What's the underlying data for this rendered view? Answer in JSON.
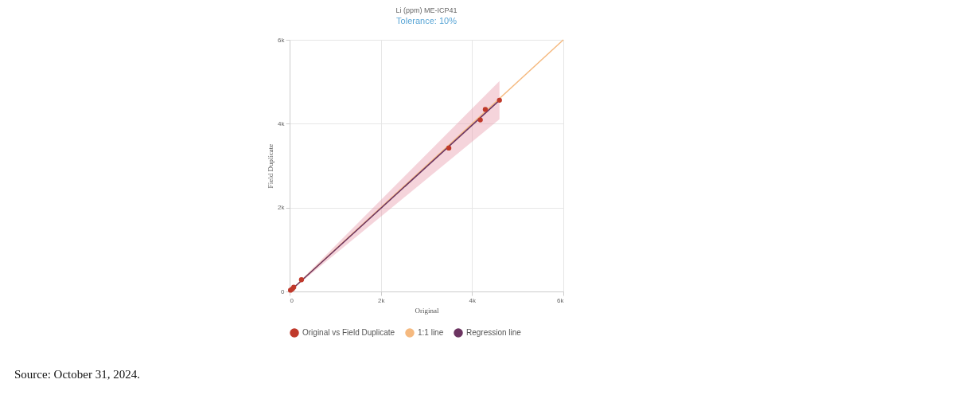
{
  "chart_data": {
    "type": "scatter",
    "title": "Li (ppm) ME-ICP41",
    "subtitle": "Tolerance: 10%",
    "xlabel": "Original",
    "ylabel": "Field Duplicate",
    "xlim": [
      0,
      6000
    ],
    "ylim": [
      0,
      6000
    ],
    "xticks": [
      0,
      {
        "value": 2000,
        "label": "2k"
      },
      {
        "value": 4000,
        "label": "4k"
      },
      {
        "value": 6000,
        "label": "6k"
      }
    ],
    "yticks": [
      0,
      {
        "value": 2000,
        "label": "2k"
      },
      {
        "value": 4000,
        "label": "4k"
      },
      {
        "value": 6000,
        "label": "6k"
      }
    ],
    "grid": true,
    "legend": "bottom",
    "series": [
      {
        "name": "Original vs Field Duplicate",
        "type": "scatter",
        "marker": "circle",
        "color": "#c0392b",
        "x": [
          20,
          60,
          90,
          260,
          3490,
          4180,
          4290,
          4600
        ],
        "values": [
          30,
          60,
          100,
          280,
          3420,
          4090,
          4340,
          4560
        ]
      },
      {
        "name": "1:1 line",
        "type": "line",
        "marker": "none",
        "color": "#f5b97f",
        "x": [
          0,
          6000
        ],
        "values": [
          0,
          6000
        ]
      },
      {
        "name": "Regression line",
        "type": "line",
        "marker": "none",
        "color": "#6c3461",
        "x": [
          0,
          4600
        ],
        "values": [
          0,
          4560
        ],
        "lower": [
          0,
          4104
        ],
        "upper": [
          0,
          5016
        ]
      }
    ],
    "annotations": [
      "Source: October 31, 2024."
    ]
  }
}
